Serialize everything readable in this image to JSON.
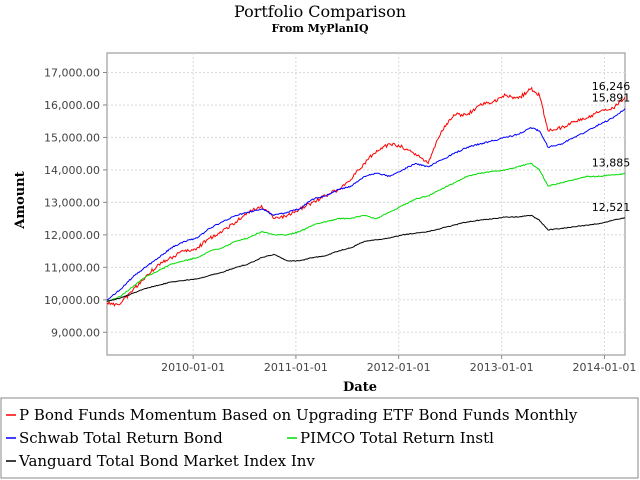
{
  "chart_data": {
    "type": "line",
    "title": "Portfolio Comparison",
    "subtitle": "From MyPlanIQ",
    "xlabel": "Date",
    "ylabel": "Amount",
    "x_range": [
      "2009-03-01",
      "2014-03-15"
    ],
    "ylim": [
      8300,
      17600
    ],
    "y_ticks": [
      9000,
      10000,
      11000,
      12000,
      13000,
      14000,
      15000,
      16000,
      17000
    ],
    "y_tick_labels": [
      "9,000.00",
      "10,000.00",
      "11,000.00",
      "12,000.00",
      "13,000.00",
      "14,000.00",
      "15,000.00",
      "16,000.00",
      "17,000.00"
    ],
    "x_ticks": [
      "2010-01-01",
      "2011-01-01",
      "2012-01-01",
      "2013-01-01",
      "2014-01-01"
    ],
    "x_tick_labels": [
      "2010-01-01",
      "2011-01-01",
      "2012-01-01",
      "2013-01-01",
      "2014-01-01"
    ],
    "grid": true,
    "legend_position": "bottom",
    "series": [
      {
        "name": "P Bond Funds Momentum Based on Upgrading ETF Bond Funds Monthly",
        "color": "#ff0000",
        "end_label": "16,246",
        "x": [
          "2009-03-01",
          "2009-04-15",
          "2009-06-01",
          "2009-07-15",
          "2009-09-01",
          "2009-10-15",
          "2009-12-01",
          "2010-01-15",
          "2010-03-01",
          "2010-04-15",
          "2010-06-01",
          "2010-07-15",
          "2010-09-01",
          "2010-10-15",
          "2010-12-01",
          "2011-01-15",
          "2011-03-01",
          "2011-04-15",
          "2011-06-01",
          "2011-07-15",
          "2011-09-01",
          "2011-10-15",
          "2011-12-01",
          "2012-01-15",
          "2012-03-01",
          "2012-04-15",
          "2012-06-01",
          "2012-07-15",
          "2012-09-01",
          "2012-10-15",
          "2012-12-01",
          "2013-01-15",
          "2013-03-01",
          "2013-04-15",
          "2013-05-15",
          "2013-06-15",
          "2013-08-01",
          "2013-09-15",
          "2013-11-01",
          "2013-12-15",
          "2014-02-01",
          "2014-03-15"
        ],
        "y": [
          9900,
          9850,
          10300,
          10700,
          11100,
          11300,
          11500,
          11600,
          11900,
          12100,
          12400,
          12700,
          12900,
          12500,
          12600,
          12800,
          13000,
          13200,
          13400,
          13700,
          14200,
          14600,
          14800,
          14700,
          14500,
          14200,
          15200,
          15700,
          15700,
          16000,
          16100,
          16300,
          16200,
          16500,
          16300,
          15200,
          15300,
          15500,
          15600,
          15800,
          15900,
          16246
        ]
      },
      {
        "name": "Schwab Total Return Bond",
        "color": "#0000ff",
        "end_label": "15,891",
        "x": [
          "2009-03-01",
          "2009-04-15",
          "2009-06-01",
          "2009-07-15",
          "2009-09-01",
          "2009-10-15",
          "2009-12-01",
          "2010-01-15",
          "2010-03-01",
          "2010-04-15",
          "2010-06-01",
          "2010-07-15",
          "2010-09-01",
          "2010-10-15",
          "2010-12-01",
          "2011-01-15",
          "2011-03-01",
          "2011-04-15",
          "2011-06-01",
          "2011-07-15",
          "2011-09-01",
          "2011-10-15",
          "2011-12-01",
          "2012-01-15",
          "2012-03-01",
          "2012-04-15",
          "2012-06-01",
          "2012-07-15",
          "2012-09-01",
          "2012-10-15",
          "2012-12-01",
          "2013-01-15",
          "2013-03-01",
          "2013-04-15",
          "2013-05-15",
          "2013-06-15",
          "2013-08-01",
          "2013-09-15",
          "2013-11-01",
          "2013-12-15",
          "2014-02-01",
          "2014-03-15"
        ],
        "y": [
          10000,
          10300,
          10700,
          11000,
          11300,
          11600,
          11800,
          11900,
          12200,
          12400,
          12600,
          12700,
          12800,
          12600,
          12700,
          12800,
          13100,
          13200,
          13400,
          13500,
          13800,
          13900,
          13800,
          14000,
          14200,
          14100,
          14300,
          14500,
          14700,
          14800,
          14900,
          15000,
          15100,
          15300,
          15200,
          14700,
          14800,
          15000,
          15200,
          15400,
          15600,
          15891
        ]
      },
      {
        "name": "PIMCO Total Return Instl",
        "color": "#00dd00",
        "end_label": "13,885",
        "x": [
          "2009-03-01",
          "2009-04-15",
          "2009-06-01",
          "2009-07-15",
          "2009-09-01",
          "2009-10-15",
          "2009-12-01",
          "2010-01-15",
          "2010-03-01",
          "2010-04-15",
          "2010-06-01",
          "2010-07-15",
          "2010-09-01",
          "2010-10-15",
          "2010-12-01",
          "2011-01-15",
          "2011-03-01",
          "2011-04-15",
          "2011-06-01",
          "2011-07-15",
          "2011-09-01",
          "2011-10-15",
          "2011-12-01",
          "2012-01-15",
          "2012-03-01",
          "2012-04-15",
          "2012-06-01",
          "2012-07-15",
          "2012-09-01",
          "2012-10-15",
          "2012-12-01",
          "2013-01-15",
          "2013-03-01",
          "2013-04-15",
          "2013-05-15",
          "2013-06-15",
          "2013-08-01",
          "2013-09-15",
          "2013-11-01",
          "2013-12-15",
          "2014-02-01",
          "2014-03-15"
        ],
        "y": [
          9950,
          10100,
          10400,
          10700,
          10900,
          11100,
          11200,
          11300,
          11500,
          11600,
          11800,
          11900,
          12100,
          12000,
          12000,
          12100,
          12300,
          12400,
          12500,
          12500,
          12600,
          12500,
          12700,
          12900,
          13100,
          13200,
          13400,
          13600,
          13800,
          13900,
          13950,
          14000,
          14100,
          14200,
          14000,
          13500,
          13600,
          13700,
          13800,
          13800,
          13850,
          13885
        ]
      },
      {
        "name": "Vanguard Total Bond Market Index Inv",
        "color": "#000000",
        "end_label": "12,521",
        "x": [
          "2009-03-01",
          "2009-04-15",
          "2009-06-01",
          "2009-07-15",
          "2009-09-01",
          "2009-10-15",
          "2009-12-01",
          "2010-01-15",
          "2010-03-01",
          "2010-04-15",
          "2010-06-01",
          "2010-07-15",
          "2010-09-01",
          "2010-10-15",
          "2010-12-01",
          "2011-01-15",
          "2011-03-01",
          "2011-04-15",
          "2011-06-01",
          "2011-07-15",
          "2011-09-01",
          "2011-10-15",
          "2011-12-01",
          "2012-01-15",
          "2012-03-01",
          "2012-04-15",
          "2012-06-01",
          "2012-07-15",
          "2012-09-01",
          "2012-10-15",
          "2012-12-01",
          "2013-01-15",
          "2013-03-01",
          "2013-04-15",
          "2013-05-15",
          "2013-06-15",
          "2013-08-01",
          "2013-09-15",
          "2013-11-01",
          "2013-12-15",
          "2014-02-01",
          "2014-03-15"
        ],
        "y": [
          9950,
          10050,
          10200,
          10350,
          10450,
          10550,
          10600,
          10650,
          10750,
          10850,
          11000,
          11100,
          11300,
          11400,
          11200,
          11200,
          11300,
          11350,
          11500,
          11600,
          11800,
          11850,
          11900,
          12000,
          12050,
          12100,
          12200,
          12300,
          12400,
          12450,
          12500,
          12550,
          12550,
          12600,
          12450,
          12150,
          12200,
          12250,
          12300,
          12350,
          12450,
          12521
        ]
      }
    ]
  }
}
